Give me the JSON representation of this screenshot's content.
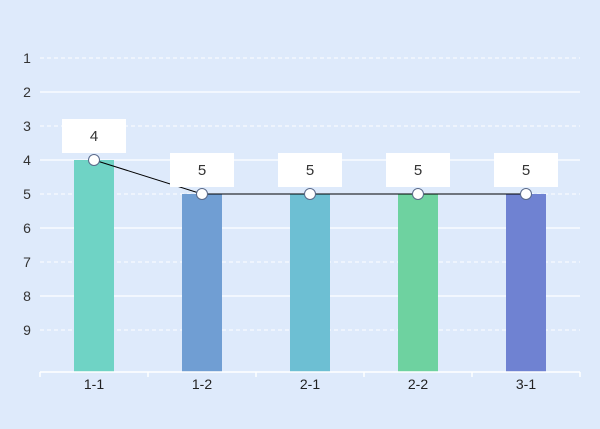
{
  "chart_data": {
    "type": "bar",
    "categories": [
      "1-1",
      "1-2",
      "2-1",
      "2-2",
      "3-1"
    ],
    "values": [
      4,
      5,
      5,
      5,
      5
    ],
    "y_ticks": [
      "1",
      "2",
      "3",
      "4",
      "5",
      "6",
      "7",
      "8",
      "9"
    ],
    "y_axis_inverted": true,
    "ylim": [
      1,
      10
    ],
    "line_overlay": true,
    "data_labels": [
      "4",
      "5",
      "5",
      "5",
      "5"
    ],
    "bar_colors": [
      "#6fd3c5",
      "#709ed3",
      "#6dbfd3",
      "#6ed2a0",
      "#6f82d2"
    ],
    "line_color": "#000000",
    "grid": true,
    "grid_style": "dashed",
    "background": "#deeafb"
  }
}
